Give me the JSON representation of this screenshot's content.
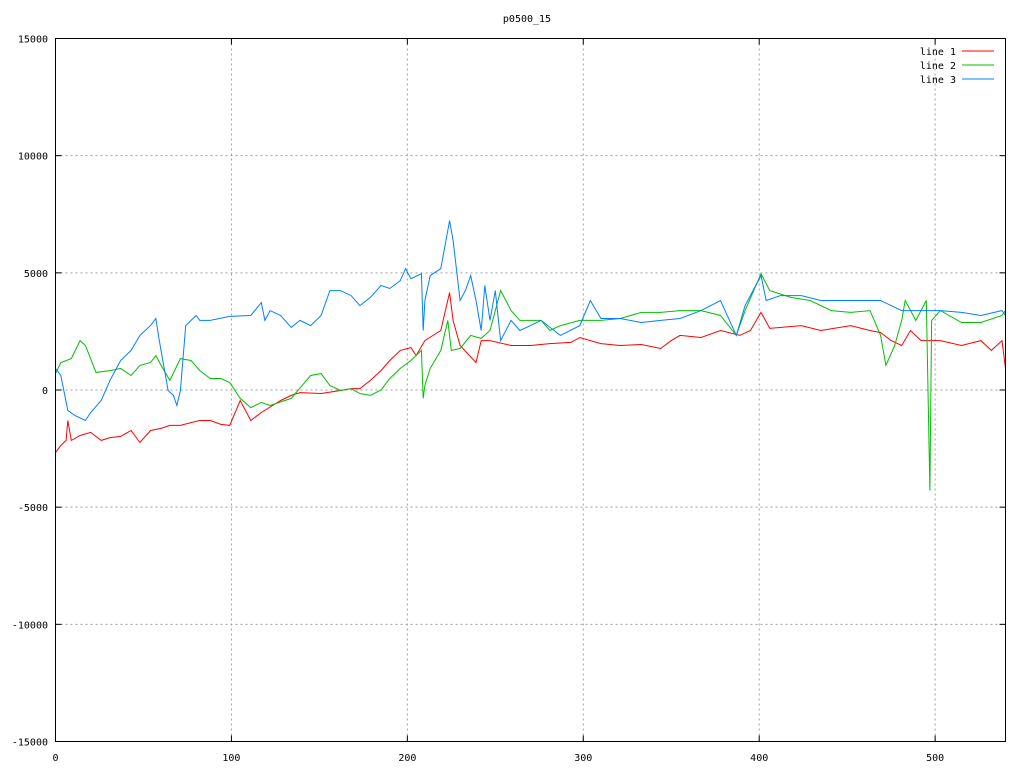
{
  "chart_data": {
    "type": "line",
    "title": "p0500_15",
    "xlabel": "",
    "ylabel": "",
    "xlim": [
      0,
      540
    ],
    "ylim": [
      -15000,
      15000
    ],
    "xticks": [
      "0",
      "100",
      "200",
      "300",
      "400",
      "500"
    ],
    "yticks": [
      "15000",
      "10000",
      "5000",
      "0",
      "-5000",
      "-10000",
      "-15000"
    ],
    "grid": true,
    "legend_position": "top-right",
    "series": [
      {
        "name": "line 1",
        "color": "#ff0000",
        "points": [
          [
            0,
            -2670
          ],
          [
            3,
            -2370
          ],
          [
            6,
            -2150
          ],
          [
            7,
            -1300
          ],
          [
            9,
            -2150
          ],
          [
            14,
            -1940
          ],
          [
            20,
            -1810
          ],
          [
            26,
            -2150
          ],
          [
            31,
            -2030
          ],
          [
            37,
            -1980
          ],
          [
            43,
            -1730
          ],
          [
            48,
            -2240
          ],
          [
            54,
            -1730
          ],
          [
            60,
            -1640
          ],
          [
            65,
            -1510
          ],
          [
            71,
            -1510
          ],
          [
            77,
            -1390
          ],
          [
            82,
            -1300
          ],
          [
            88,
            -1300
          ],
          [
            94,
            -1470
          ],
          [
            99,
            -1510
          ],
          [
            105,
            -450
          ],
          [
            111,
            -1300
          ],
          [
            117,
            -960
          ],
          [
            128,
            -450
          ],
          [
            134,
            -230
          ],
          [
            139,
            -110
          ],
          [
            151,
            -150
          ],
          [
            162,
            -20
          ],
          [
            168,
            60
          ],
          [
            173,
            60
          ],
          [
            179,
            410
          ],
          [
            185,
            830
          ],
          [
            190,
            1260
          ],
          [
            196,
            1690
          ],
          [
            202,
            1810
          ],
          [
            205,
            1470
          ],
          [
            210,
            2110
          ],
          [
            219,
            2540
          ],
          [
            224,
            4160
          ],
          [
            226,
            2970
          ],
          [
            230,
            1900
          ],
          [
            239,
            1170
          ],
          [
            242,
            2110
          ],
          [
            247,
            2110
          ],
          [
            259,
            1900
          ],
          [
            270,
            1900
          ],
          [
            281,
            1980
          ],
          [
            293,
            2030
          ],
          [
            298,
            2240
          ],
          [
            310,
            1980
          ],
          [
            321,
            1900
          ],
          [
            333,
            1940
          ],
          [
            344,
            1770
          ],
          [
            350,
            2110
          ],
          [
            355,
            2330
          ],
          [
            367,
            2240
          ],
          [
            378,
            2540
          ],
          [
            389,
            2330
          ],
          [
            395,
            2540
          ],
          [
            401,
            3310
          ],
          [
            406,
            2630
          ],
          [
            424,
            2750
          ],
          [
            435,
            2540
          ],
          [
            452,
            2750
          ],
          [
            463,
            2540
          ],
          [
            469,
            2450
          ],
          [
            475,
            2110
          ],
          [
            481,
            1900
          ],
          [
            486,
            2540
          ],
          [
            492,
            2110
          ],
          [
            503,
            2110
          ],
          [
            515,
            1900
          ],
          [
            526,
            2110
          ],
          [
            532,
            1690
          ],
          [
            538,
            2110
          ],
          [
            540,
            920
          ]
        ]
      },
      {
        "name": "line 2",
        "color": "#00c000",
        "points": [
          [
            0,
            700
          ],
          [
            3,
            1170
          ],
          [
            9,
            1340
          ],
          [
            14,
            2110
          ],
          [
            17,
            1900
          ],
          [
            23,
            750
          ],
          [
            31,
            830
          ],
          [
            37,
            920
          ],
          [
            43,
            620
          ],
          [
            48,
            1050
          ],
          [
            54,
            1170
          ],
          [
            57,
            1470
          ],
          [
            60,
            1050
          ],
          [
            65,
            410
          ],
          [
            71,
            1340
          ],
          [
            77,
            1260
          ],
          [
            82,
            830
          ],
          [
            88,
            490
          ],
          [
            94,
            490
          ],
          [
            99,
            320
          ],
          [
            105,
            -360
          ],
          [
            111,
            -750
          ],
          [
            117,
            -530
          ],
          [
            122,
            -660
          ],
          [
            134,
            -360
          ],
          [
            145,
            620
          ],
          [
            151,
            700
          ],
          [
            156,
            190
          ],
          [
            162,
            -20
          ],
          [
            168,
            60
          ],
          [
            173,
            -150
          ],
          [
            179,
            -230
          ],
          [
            185,
            0
          ],
          [
            190,
            490
          ],
          [
            196,
            920
          ],
          [
            202,
            1260
          ],
          [
            208,
            1690
          ],
          [
            209,
            -360
          ],
          [
            210,
            190
          ],
          [
            213,
            920
          ],
          [
            219,
            1690
          ],
          [
            223,
            2970
          ],
          [
            225,
            1690
          ],
          [
            230,
            1770
          ],
          [
            236,
            2330
          ],
          [
            242,
            2200
          ],
          [
            247,
            2540
          ],
          [
            250,
            3390
          ],
          [
            253,
            4240
          ],
          [
            256,
            3820
          ],
          [
            259,
            3390
          ],
          [
            264,
            2970
          ],
          [
            270,
            2970
          ],
          [
            276,
            2970
          ],
          [
            281,
            2540
          ],
          [
            287,
            2750
          ],
          [
            298,
            2970
          ],
          [
            310,
            2970
          ],
          [
            321,
            3050
          ],
          [
            333,
            3310
          ],
          [
            344,
            3310
          ],
          [
            355,
            3390
          ],
          [
            367,
            3390
          ],
          [
            378,
            3180
          ],
          [
            387,
            2330
          ],
          [
            392,
            3390
          ],
          [
            401,
            4960
          ],
          [
            406,
            4240
          ],
          [
            418,
            3950
          ],
          [
            429,
            3820
          ],
          [
            441,
            3390
          ],
          [
            452,
            3310
          ],
          [
            463,
            3390
          ],
          [
            469,
            2330
          ],
          [
            472,
            1050
          ],
          [
            477,
            1900
          ],
          [
            481,
            2970
          ],
          [
            483,
            3820
          ],
          [
            489,
            2970
          ],
          [
            495,
            3820
          ],
          [
            497,
            -4290
          ],
          [
            498,
            2970
          ],
          [
            503,
            3390
          ],
          [
            515,
            2880
          ],
          [
            526,
            2880
          ],
          [
            538,
            3180
          ],
          [
            540,
            3390
          ]
        ]
      },
      {
        "name": "line 3",
        "color": "#0080ff",
        "points": [
          [
            0,
            920
          ],
          [
            3,
            620
          ],
          [
            7,
            -870
          ],
          [
            11,
            -1090
          ],
          [
            17,
            -1300
          ],
          [
            20,
            -960
          ],
          [
            26,
            -450
          ],
          [
            31,
            410
          ],
          [
            37,
            1260
          ],
          [
            43,
            1690
          ],
          [
            48,
            2330
          ],
          [
            54,
            2750
          ],
          [
            57,
            3050
          ],
          [
            59,
            2110
          ],
          [
            61,
            1260
          ],
          [
            64,
            -20
          ],
          [
            67,
            -230
          ],
          [
            69,
            -660
          ],
          [
            71,
            -20
          ],
          [
            74,
            2750
          ],
          [
            77,
            2970
          ],
          [
            80,
            3180
          ],
          [
            82,
            2970
          ],
          [
            88,
            2970
          ],
          [
            99,
            3140
          ],
          [
            111,
            3180
          ],
          [
            117,
            3730
          ],
          [
            119,
            2970
          ],
          [
            122,
            3390
          ],
          [
            128,
            3180
          ],
          [
            134,
            2670
          ],
          [
            139,
            2970
          ],
          [
            145,
            2750
          ],
          [
            151,
            3180
          ],
          [
            156,
            4240
          ],
          [
            162,
            4240
          ],
          [
            168,
            4030
          ],
          [
            173,
            3600
          ],
          [
            179,
            3950
          ],
          [
            185,
            4460
          ],
          [
            190,
            4330
          ],
          [
            196,
            4670
          ],
          [
            199,
            5180
          ],
          [
            202,
            4750
          ],
          [
            208,
            4960
          ],
          [
            209,
            2540
          ],
          [
            210,
            3820
          ],
          [
            213,
            4880
          ],
          [
            219,
            5180
          ],
          [
            224,
            7230
          ],
          [
            226,
            6380
          ],
          [
            230,
            3820
          ],
          [
            233,
            4240
          ],
          [
            236,
            4880
          ],
          [
            239,
            3820
          ],
          [
            242,
            2540
          ],
          [
            244,
            4460
          ],
          [
            247,
            2970
          ],
          [
            250,
            4240
          ],
          [
            253,
            2110
          ],
          [
            259,
            2970
          ],
          [
            264,
            2540
          ],
          [
            270,
            2750
          ],
          [
            276,
            2970
          ],
          [
            287,
            2330
          ],
          [
            298,
            2750
          ],
          [
            304,
            3820
          ],
          [
            310,
            3050
          ],
          [
            321,
            3050
          ],
          [
            333,
            2880
          ],
          [
            344,
            2970
          ],
          [
            355,
            3050
          ],
          [
            367,
            3390
          ],
          [
            378,
            3820
          ],
          [
            387,
            2330
          ],
          [
            392,
            3600
          ],
          [
            401,
            4880
          ],
          [
            404,
            3820
          ],
          [
            412,
            4030
          ],
          [
            424,
            4030
          ],
          [
            435,
            3820
          ],
          [
            446,
            3820
          ],
          [
            458,
            3820
          ],
          [
            469,
            3820
          ],
          [
            481,
            3390
          ],
          [
            492,
            3390
          ],
          [
            503,
            3390
          ],
          [
            515,
            3310
          ],
          [
            526,
            3180
          ],
          [
            538,
            3390
          ],
          [
            540,
            3180
          ]
        ]
      }
    ]
  }
}
